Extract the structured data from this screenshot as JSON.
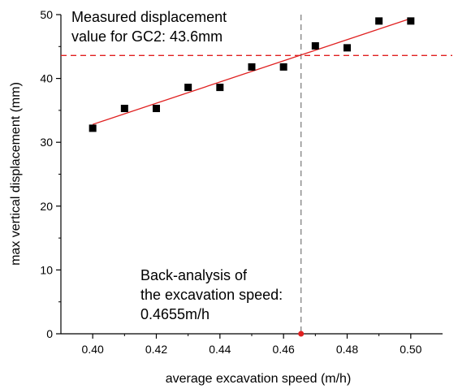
{
  "chart_data": {
    "type": "scatter",
    "xlabel": "average excavation speed (m/h)",
    "ylabel": "max vertical displacement (mm)",
    "xlim": [
      0.39,
      0.51
    ],
    "ylim": [
      0,
      50
    ],
    "x_ticks": [
      "0.40",
      "0.42",
      "0.44",
      "0.46",
      "0.48",
      "0.50"
    ],
    "y_ticks": [
      "0",
      "10",
      "20",
      "30",
      "40",
      "50"
    ],
    "x_tick_values": [
      0.4,
      0.42,
      0.44,
      0.46,
      0.48,
      0.5
    ],
    "y_tick_values": [
      0,
      10,
      20,
      30,
      40,
      50
    ],
    "grid": false,
    "series": [
      {
        "marker": "square",
        "color": "#000000",
        "x": [
          0.4,
          0.41,
          0.42,
          0.43,
          0.44,
          0.45,
          0.46,
          0.47,
          0.48,
          0.49,
          0.5
        ],
        "y": [
          32.2,
          35.3,
          35.3,
          38.6,
          38.6,
          41.8,
          41.8,
          45.1,
          44.8,
          49.0,
          49.0
        ]
      }
    ],
    "fit_line": {
      "color": "#e02020",
      "x": [
        0.4,
        0.5
      ],
      "y": [
        32.8,
        49.4
      ]
    },
    "reference_lines": {
      "horizontal": {
        "y": 43.6,
        "color": "#e02020",
        "style": "dashed"
      },
      "vertical": {
        "x": 0.4655,
        "color": "#808080",
        "style": "dashed"
      },
      "marker": {
        "x": 0.4655,
        "y": 0,
        "color": "#e02020"
      }
    },
    "annotations": [
      {
        "id": "measured",
        "lines": [
          "Measured displacement",
          "value for GC2: 43.6mm"
        ]
      },
      {
        "id": "back",
        "lines": [
          "Back-analysis of",
          "the excavation speed:",
          "0.4655m/h"
        ]
      }
    ]
  }
}
